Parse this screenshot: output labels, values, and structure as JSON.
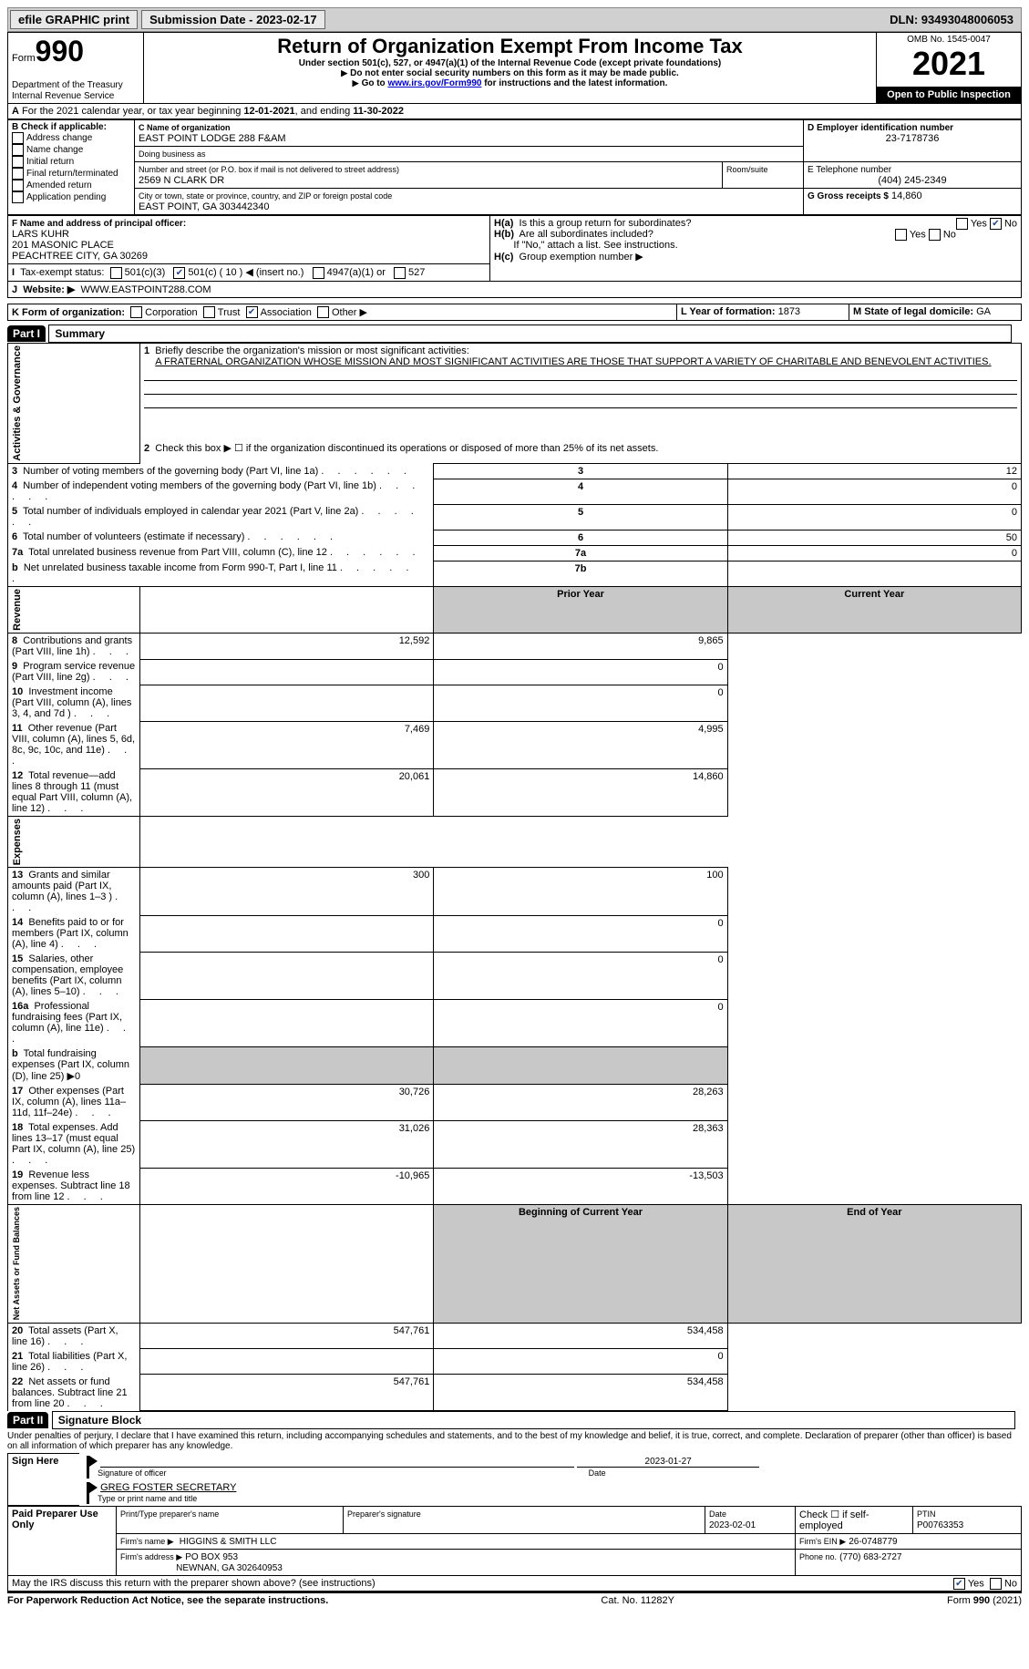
{
  "topbar": {
    "efile_label": "efile GRAPHIC print",
    "submission_label": "Submission Date - 2023-02-17",
    "dln_label": "DLN: 93493048006053"
  },
  "header": {
    "form_word": "Form",
    "form_no": "990",
    "dept": "Department of the Treasury",
    "irs": "Internal Revenue Service",
    "title": "Return of Organization Exempt From Income Tax",
    "subtitle": "Under section 501(c), 527, or 4947(a)(1) of the Internal Revenue Code (except private foundations)",
    "note1": "Do not enter social security numbers on this form as it may be made public.",
    "note2_pre": "Go to ",
    "note2_link": "www.irs.gov/Form990",
    "note2_post": " for instructions and the latest information.",
    "omb": "OMB No. 1545-0047",
    "year": "2021",
    "open": "Open to Public Inspection"
  },
  "A": {
    "text_pre": "For the 2021 calendar year, or tax year beginning ",
    "begin": "12-01-2021",
    "mid": ", and ending ",
    "end": "11-30-2022"
  },
  "B": {
    "label": "B Check if applicable:",
    "items": [
      "Address change",
      "Name change",
      "Initial return",
      "Final return/terminated",
      "Amended return",
      "Application pending"
    ]
  },
  "C": {
    "name_label": "C Name of organization",
    "name": "EAST POINT LODGE 288 F&AM",
    "dba_label": "Doing business as",
    "dba": "",
    "street_label": "Number and street (or P.O. box if mail is not delivered to street address)",
    "room_label": "Room/suite",
    "street": "2569 N CLARK DR",
    "city_label": "City or town, state or province, country, and ZIP or foreign postal code",
    "city": "EAST POINT, GA  303442340"
  },
  "D": {
    "label": "D Employer identification number",
    "value": "23-7178736"
  },
  "E": {
    "label": "E Telephone number",
    "value": "(404) 245-2349"
  },
  "G": {
    "label": "G Gross receipts $",
    "value": "14,860"
  },
  "F": {
    "label": "F  Name and address of principal officer:",
    "name": "LARS KUHR",
    "addr1": "201 MASONIC PLACE",
    "addr2": "PEACHTREE CITY, GA  30269"
  },
  "H": {
    "a": "Is this a group return for subordinates?",
    "b": "Are all subordinates included?",
    "b_note": "If \"No,\" attach a list. See instructions.",
    "c": "Group exemption number ▶",
    "yes": "Yes",
    "no": "No"
  },
  "I": {
    "label": "Tax-exempt status:",
    "opts": [
      "501(c)(3)",
      "501(c) ( 10 ) ◀ (insert no.)",
      "4947(a)(1) or",
      "527"
    ]
  },
  "J": {
    "label": "Website: ▶",
    "value": "WWW.EASTPOINT288.COM"
  },
  "K": {
    "label": "K Form of organization:",
    "opts": [
      "Corporation",
      "Trust",
      "Association",
      "Other ▶"
    ]
  },
  "L": {
    "label": "L Year of formation:",
    "value": "1873"
  },
  "M": {
    "label": "M State of legal domicile:",
    "value": "GA"
  },
  "parts": {
    "p1": "Part I",
    "p1_title": "Summary",
    "p2": "Part II",
    "p2_title": "Signature Block"
  },
  "sections": {
    "activities": "Activities & Governance",
    "revenue": "Revenue",
    "expenses": "Expenses",
    "netassets": "Net Assets or Fund Balances"
  },
  "summary": {
    "l1_label": "Briefly describe the organization's mission or most significant activities:",
    "l1_text": "A FRATERNAL ORGANIZATION WHOSE MISSION AND MOST SIGNIFICANT ACTIVITIES ARE THOSE THAT SUPPORT A VARIETY OF CHARITABLE AND BENEVOLENT ACTIVITIES.",
    "l2": "Check this box ▶ ☐ if the organization discontinued its operations or disposed of more than 25% of its net assets.",
    "col_prior": "Prior Year",
    "col_current": "Current Year",
    "col_begin": "Beginning of Current Year",
    "col_end": "End of Year",
    "rows_top": [
      {
        "n": "3",
        "label": "Number of voting members of the governing body (Part VI, line 1a)",
        "box": "3",
        "val": "12"
      },
      {
        "n": "4",
        "label": "Number of independent voting members of the governing body (Part VI, line 1b)",
        "box": "4",
        "val": "0"
      },
      {
        "n": "5",
        "label": "Total number of individuals employed in calendar year 2021 (Part V, line 2a)",
        "box": "5",
        "val": "0"
      },
      {
        "n": "6",
        "label": "Total number of volunteers (estimate if necessary)",
        "box": "6",
        "val": "50"
      },
      {
        "n": "7a",
        "label": "Total unrelated business revenue from Part VIII, column (C), line 12",
        "box": "7a",
        "val": "0"
      },
      {
        "n": "b",
        "label": "Net unrelated business taxable income from Form 990-T, Part I, line 11",
        "box": "7b",
        "val": ""
      }
    ],
    "rows_rev": [
      {
        "n": "8",
        "label": "Contributions and grants (Part VIII, line 1h)",
        "prior": "12,592",
        "cur": "9,865"
      },
      {
        "n": "9",
        "label": "Program service revenue (Part VIII, line 2g)",
        "prior": "",
        "cur": "0"
      },
      {
        "n": "10",
        "label": "Investment income (Part VIII, column (A), lines 3, 4, and 7d )",
        "prior": "",
        "cur": "0"
      },
      {
        "n": "11",
        "label": "Other revenue (Part VIII, column (A), lines 5, 6d, 8c, 9c, 10c, and 11e)",
        "prior": "7,469",
        "cur": "4,995"
      },
      {
        "n": "12",
        "label": "Total revenue—add lines 8 through 11 (must equal Part VIII, column (A), line 12)",
        "prior": "20,061",
        "cur": "14,860"
      }
    ],
    "rows_exp": [
      {
        "n": "13",
        "label": "Grants and similar amounts paid (Part IX, column (A), lines 1–3 )",
        "prior": "300",
        "cur": "100"
      },
      {
        "n": "14",
        "label": "Benefits paid to or for members (Part IX, column (A), line 4)",
        "prior": "",
        "cur": "0"
      },
      {
        "n": "15",
        "label": "Salaries, other compensation, employee benefits (Part IX, column (A), lines 5–10)",
        "prior": "",
        "cur": "0"
      },
      {
        "n": "16a",
        "label": "Professional fundraising fees (Part IX, column (A), line 11e)",
        "prior": "",
        "cur": "0"
      },
      {
        "n": "b",
        "label": "Total fundraising expenses (Part IX, column (D), line 25) ▶0",
        "prior": "GREY",
        "cur": "GREY"
      },
      {
        "n": "17",
        "label": "Other expenses (Part IX, column (A), lines 11a–11d, 11f–24e)",
        "prior": "30,726",
        "cur": "28,263"
      },
      {
        "n": "18",
        "label": "Total expenses. Add lines 13–17 (must equal Part IX, column (A), line 25)",
        "prior": "31,026",
        "cur": "28,363"
      },
      {
        "n": "19",
        "label": "Revenue less expenses. Subtract line 18 from line 12",
        "prior": "-10,965",
        "cur": "-13,503"
      }
    ],
    "rows_net": [
      {
        "n": "20",
        "label": "Total assets (Part X, line 16)",
        "prior": "547,761",
        "cur": "534,458"
      },
      {
        "n": "21",
        "label": "Total liabilities (Part X, line 26)",
        "prior": "",
        "cur": "0"
      },
      {
        "n": "22",
        "label": "Net assets or fund balances. Subtract line 21 from line 20",
        "prior": "547,761",
        "cur": "534,458"
      }
    ]
  },
  "sig": {
    "perjury": "Under penalties of perjury, I declare that I have examined this return, including accompanying schedules and statements, and to the best of my knowledge and belief, it is true, correct, and complete. Declaration of preparer (other than officer) is based on all information of which preparer has any knowledge.",
    "sign_here": "Sign Here",
    "sig_officer": "Signature of officer",
    "sig_date": "2023-01-27",
    "date_label": "Date",
    "officer_name": "GREG FOSTER  SECRETARY",
    "officer_label": "Type or print name and title",
    "paid": "Paid Preparer Use Only",
    "prep_name_label": "Print/Type preparer's name",
    "prep_sig_label": "Preparer's signature",
    "prep_date_label": "Date",
    "prep_date": "2023-02-01",
    "check_self": "Check ☐ if self-employed",
    "ptin_label": "PTIN",
    "ptin": "P00763353",
    "firm_name_label": "Firm's name    ▶",
    "firm_name": "HIGGINS & SMITH LLC",
    "firm_ein_label": "Firm's EIN ▶",
    "firm_ein": "26-0748779",
    "firm_addr_label": "Firm's address ▶",
    "firm_addr1": "PO BOX 953",
    "firm_addr2": "NEWNAN, GA  302640953",
    "phone_label": "Phone no.",
    "phone": "(770) 683-2727",
    "discuss": "May the IRS discuss this return with the preparer shown above? (see instructions)"
  },
  "footer": {
    "left": "For Paperwork Reduction Act Notice, see the separate instructions.",
    "mid": "Cat. No. 11282Y",
    "right": "Form 990 (2021)"
  }
}
